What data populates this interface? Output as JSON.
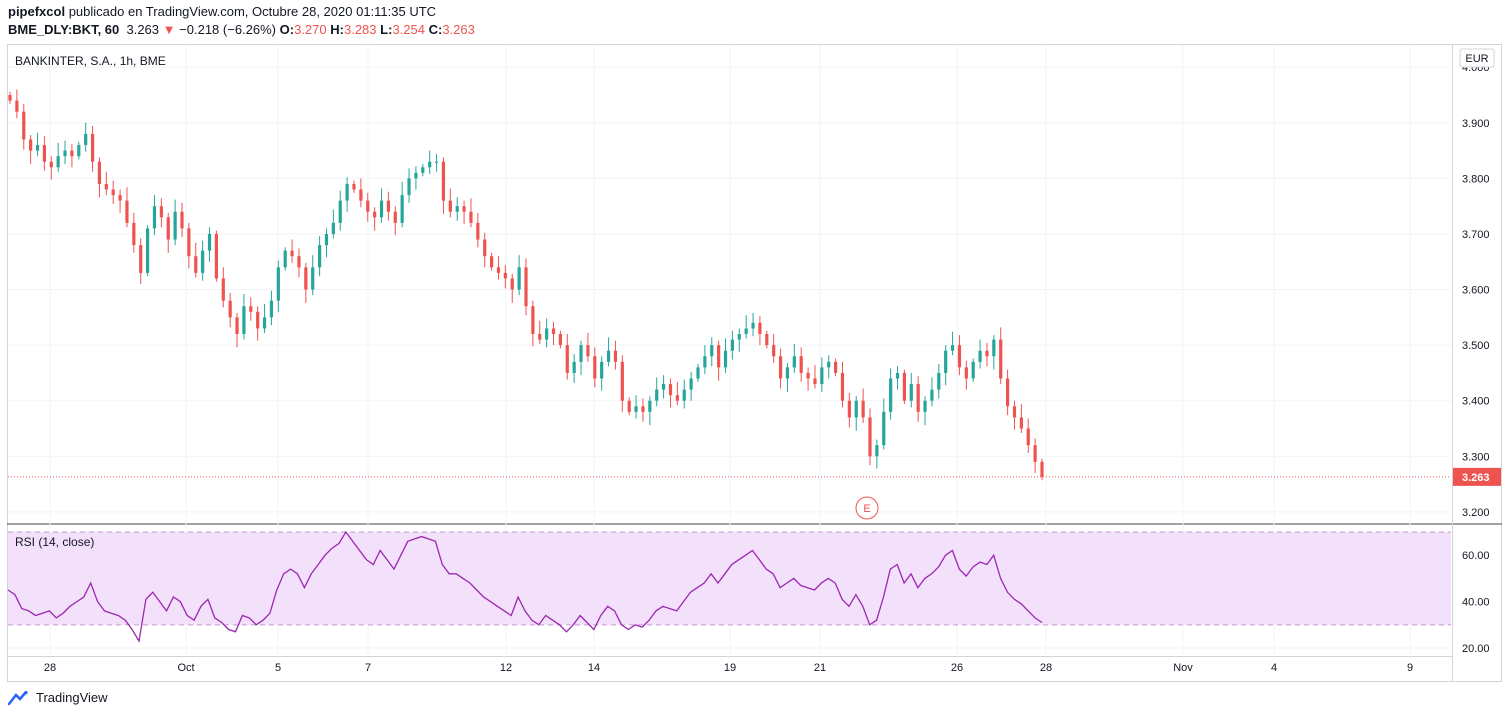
{
  "header": {
    "user": "pipefxcol",
    "published": "publicado en TradingView.com, Octubre 28, 2020 01:11:35 UTC",
    "symbol": "BME_DLY:BKT, 60",
    "last": "3.263",
    "change": "−0.218 (−6.26%)",
    "o_label": "O:",
    "o_value": "3.270",
    "h_label": "H:",
    "h_value": "3.283",
    "l_label": "L:",
    "l_value": "3.254",
    "c_label": "C:",
    "c_value": "3.263"
  },
  "footer": {
    "brand": "TradingView"
  },
  "colors": {
    "up": "#26a69a",
    "down": "#ef5350",
    "rsi": "#9c27b0",
    "rsi_band": "#f3e0fb",
    "grid": "#f0f3fa"
  },
  "chart_data": [
    {
      "type": "candlestick",
      "title": "BANKINTER, S.A., 1h, BME",
      "currency": "EUR",
      "ylim": [
        3.18,
        4.04
      ],
      "yticks": [
        "4.000",
        "3.900",
        "3.800",
        "3.700",
        "3.600",
        "3.500",
        "3.400",
        "3.300",
        "3.200"
      ],
      "ytick_values": [
        4.0,
        3.9,
        3.8,
        3.7,
        3.6,
        3.5,
        3.4,
        3.3,
        3.2
      ],
      "last_price_label": "3.263",
      "last_price": 3.263,
      "xticks": [
        "28",
        "Oct",
        "5",
        "7",
        "12",
        "14",
        "19",
        "21",
        "26",
        "28",
        "Nov",
        "4",
        "9"
      ],
      "earnings_marker": "E",
      "close": [
        3.94,
        3.92,
        3.87,
        3.85,
        3.86,
        3.83,
        3.82,
        3.84,
        3.85,
        3.84,
        3.86,
        3.88,
        3.83,
        3.79,
        3.78,
        3.77,
        3.76,
        3.72,
        3.68,
        3.63,
        3.71,
        3.75,
        3.73,
        3.69,
        3.74,
        3.71,
        3.66,
        3.63,
        3.67,
        3.7,
        3.62,
        3.58,
        3.55,
        3.52,
        3.57,
        3.56,
        3.53,
        3.55,
        3.58,
        3.64,
        3.67,
        3.66,
        3.64,
        3.6,
        3.64,
        3.68,
        3.7,
        3.72,
        3.76,
        3.79,
        3.78,
        3.76,
        3.74,
        3.73,
        3.76,
        3.74,
        3.72,
        3.77,
        3.8,
        3.81,
        3.82,
        3.83,
        3.83,
        3.76,
        3.74,
        3.75,
        3.74,
        3.72,
        3.69,
        3.66,
        3.64,
        3.63,
        3.62,
        3.6,
        3.64,
        3.57,
        3.52,
        3.51,
        3.53,
        3.52,
        3.5,
        3.45,
        3.47,
        3.5,
        3.48,
        3.44,
        3.47,
        3.49,
        3.47,
        3.4,
        3.38,
        3.39,
        3.38,
        3.4,
        3.42,
        3.43,
        3.41,
        3.4,
        3.42,
        3.44,
        3.46,
        3.48,
        3.5,
        3.46,
        3.49,
        3.51,
        3.52,
        3.53,
        3.54,
        3.52,
        3.5,
        3.48,
        3.44,
        3.46,
        3.48,
        3.45,
        3.44,
        3.43,
        3.46,
        3.47,
        3.45,
        3.4,
        3.37,
        3.4,
        3.37,
        3.3,
        3.32,
        3.38,
        3.44,
        3.45,
        3.4,
        3.43,
        3.38,
        3.4,
        3.42,
        3.45,
        3.49,
        3.5,
        3.46,
        3.44,
        3.47,
        3.49,
        3.48,
        3.51,
        3.44,
        3.39,
        3.37,
        3.35,
        3.32,
        3.29,
        3.263
      ],
      "volatility": 0.02
    },
    {
      "type": "line",
      "title": "RSI (14, close)",
      "ylim": [
        17,
        73
      ],
      "yticks": [
        "60.00",
        "40.00",
        "20.00"
      ],
      "ytick_values": [
        60,
        40,
        20
      ],
      "band": [
        30,
        70
      ],
      "values": [
        45,
        43,
        37,
        36,
        34,
        35,
        36,
        33,
        35,
        38,
        40,
        42,
        48,
        40,
        36,
        35,
        34,
        32,
        28,
        23,
        41,
        44,
        40,
        36,
        42,
        40,
        34,
        32,
        38,
        41,
        33,
        31,
        28,
        27,
        34,
        33,
        30,
        32,
        35,
        45,
        52,
        54,
        52,
        46,
        52,
        56,
        60,
        63,
        65,
        70,
        66,
        62,
        58,
        56,
        62,
        58,
        54,
        60,
        66,
        67,
        68,
        67,
        66,
        56,
        52,
        52,
        50,
        48,
        45,
        42,
        40,
        38,
        36,
        34,
        42,
        36,
        32,
        30,
        34,
        32,
        30,
        27,
        30,
        34,
        31,
        28,
        34,
        38,
        36,
        30,
        28,
        30,
        29,
        32,
        36,
        38,
        37,
        36,
        40,
        44,
        46,
        48,
        52,
        48,
        52,
        56,
        58,
        60,
        62,
        58,
        54,
        52,
        46,
        48,
        50,
        47,
        46,
        45,
        48,
        50,
        48,
        41,
        38,
        43,
        38,
        30,
        32,
        42,
        54,
        56,
        48,
        52,
        46,
        50,
        52,
        55,
        60,
        62,
        54,
        51,
        55,
        57,
        56,
        60,
        50,
        44,
        41,
        39,
        36,
        33,
        31
      ]
    }
  ]
}
